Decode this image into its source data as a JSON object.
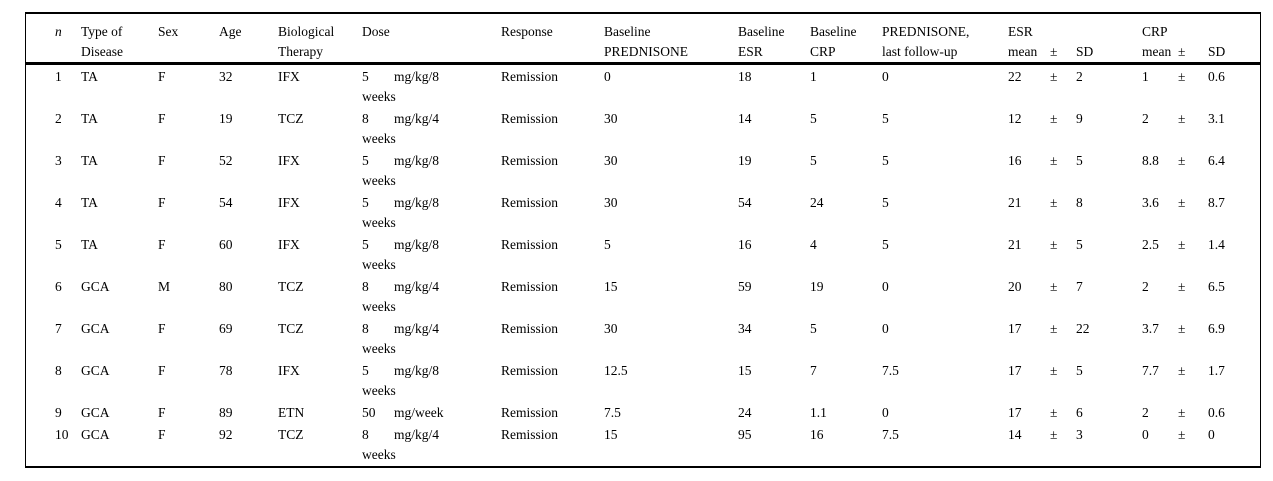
{
  "table": {
    "pm": "±",
    "header": {
      "n": "n",
      "disease": "Type of Disease",
      "sex": "Sex",
      "age": "Age",
      "therapy": "Biological Therapy",
      "dose": "Dose",
      "response": "Response",
      "baseline_prednisone": "Baseline PREDNISONE",
      "baseline_esr": "Baseline ESR",
      "baseline_crp": "Baseline CRP",
      "prednisone_followup": "PREDNISONE, last follow-up",
      "esr_top": "ESR",
      "crp_top": "CRP",
      "mean": "mean",
      "pm": "±",
      "sd": "SD"
    },
    "rows": [
      {
        "n": "1",
        "disease": "TA",
        "sex": "F",
        "age": "32",
        "therapy": "IFX",
        "dose_amount": "5",
        "dose_unit": "mg/kg/8",
        "dose_line2": "weeks",
        "response": "Remission",
        "baseline_prednisone": "0",
        "baseline_esr": "18",
        "baseline_crp": "1",
        "prednisone_followup": "0",
        "esr_mean": "22",
        "esr_sd": "2",
        "crp_mean": "1",
        "crp_sd": "0.6"
      },
      {
        "n": "2",
        "disease": "TA",
        "sex": "F",
        "age": "19",
        "therapy": "TCZ",
        "dose_amount": "8",
        "dose_unit": "mg/kg/4",
        "dose_line2": "weeks",
        "response": "Remission",
        "baseline_prednisone": "30",
        "baseline_esr": "14",
        "baseline_crp": "5",
        "prednisone_followup": "5",
        "esr_mean": "12",
        "esr_sd": "9",
        "crp_mean": "2",
        "crp_sd": "3.1"
      },
      {
        "n": "3",
        "disease": "TA",
        "sex": "F",
        "age": "52",
        "therapy": "IFX",
        "dose_amount": "5",
        "dose_unit": "mg/kg/8",
        "dose_line2": "weeks",
        "response": "Remission",
        "baseline_prednisone": "30",
        "baseline_esr": "19",
        "baseline_crp": "5",
        "prednisone_followup": "5",
        "esr_mean": "16",
        "esr_sd": "5",
        "crp_mean": "8.8",
        "crp_sd": "6.4"
      },
      {
        "n": "4",
        "disease": "TA",
        "sex": "F",
        "age": "54",
        "therapy": "IFX",
        "dose_amount": "5",
        "dose_unit": "mg/kg/8",
        "dose_line2": "weeks",
        "response": "Remission",
        "baseline_prednisone": "30",
        "baseline_esr": "54",
        "baseline_crp": "24",
        "prednisone_followup": "5",
        "esr_mean": "21",
        "esr_sd": "8",
        "crp_mean": "3.6",
        "crp_sd": "8.7"
      },
      {
        "n": "5",
        "disease": "TA",
        "sex": "F",
        "age": "60",
        "therapy": "IFX",
        "dose_amount": "5",
        "dose_unit": "mg/kg/8",
        "dose_line2": "weeks",
        "response": "Remission",
        "baseline_prednisone": "5",
        "baseline_esr": "16",
        "baseline_crp": "4",
        "prednisone_followup": "5",
        "esr_mean": "21",
        "esr_sd": "5",
        "crp_mean": "2.5",
        "crp_sd": "1.4"
      },
      {
        "n": "6",
        "disease": "GCA",
        "sex": "M",
        "age": "80",
        "therapy": "TCZ",
        "dose_amount": "8",
        "dose_unit": "mg/kg/4",
        "dose_line2": "weeks",
        "response": "Remission",
        "baseline_prednisone": "15",
        "baseline_esr": "59",
        "baseline_crp": "19",
        "prednisone_followup": "0",
        "esr_mean": "20",
        "esr_sd": "7",
        "crp_mean": "2",
        "crp_sd": "6.5"
      },
      {
        "n": "7",
        "disease": "GCA",
        "sex": "F",
        "age": "69",
        "therapy": "TCZ",
        "dose_amount": "8",
        "dose_unit": "mg/kg/4",
        "dose_line2": "weeks",
        "response": "Remission",
        "baseline_prednisone": "30",
        "baseline_esr": "34",
        "baseline_crp": "5",
        "prednisone_followup": "0",
        "esr_mean": "17",
        "esr_sd": "22",
        "crp_mean": "3.7",
        "crp_sd": "6.9"
      },
      {
        "n": "8",
        "disease": "GCA",
        "sex": "F",
        "age": "78",
        "therapy": "IFX",
        "dose_amount": "5",
        "dose_unit": "mg/kg/8",
        "dose_line2": "weeks",
        "response": "Remission",
        "baseline_prednisone": "12.5",
        "baseline_esr": "15",
        "baseline_crp": "7",
        "prednisone_followup": "7.5",
        "esr_mean": "17",
        "esr_sd": "5",
        "crp_mean": "7.7",
        "crp_sd": "1.7"
      },
      {
        "n": "9",
        "disease": "GCA",
        "sex": "F",
        "age": "89",
        "therapy": "ETN",
        "dose_amount": "50",
        "dose_unit": "mg/week",
        "dose_line2": "",
        "response": "Remission",
        "baseline_prednisone": "7.5",
        "baseline_esr": "24",
        "baseline_crp": "1.1",
        "prednisone_followup": "0",
        "esr_mean": "17",
        "esr_sd": "6",
        "crp_mean": "2",
        "crp_sd": "0.6"
      },
      {
        "n": "10",
        "disease": "GCA",
        "sex": "F",
        "age": "92",
        "therapy": "TCZ",
        "dose_amount": "8",
        "dose_unit": "mg/kg/4",
        "dose_line2": "weeks",
        "response": "Remission",
        "baseline_prednisone": "15",
        "baseline_esr": "95",
        "baseline_crp": "16",
        "prednisone_followup": "7.5",
        "esr_mean": "14",
        "esr_sd": "3",
        "crp_mean": "0",
        "crp_sd": "0"
      }
    ]
  }
}
